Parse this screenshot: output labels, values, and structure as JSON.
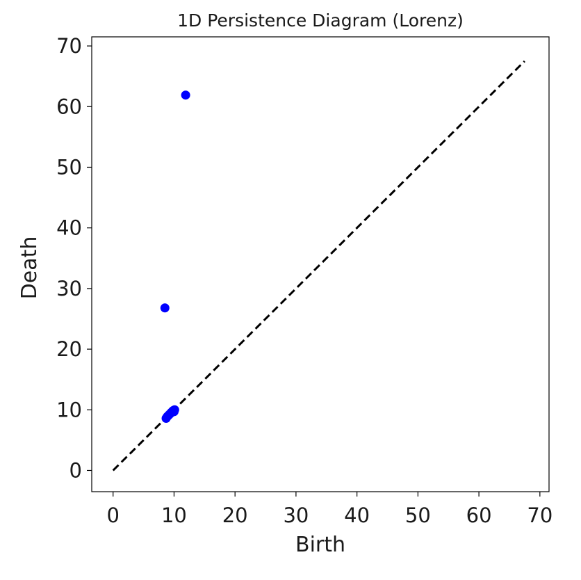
{
  "chart_data": {
    "type": "scatter",
    "title": "1D Persistence Diagram (Lorenz)",
    "xlabel": "Birth",
    "ylabel": "Death",
    "xlim": [
      -3.5,
      71.5
    ],
    "ylim": [
      -3.5,
      71.5
    ],
    "xticks": [
      0,
      10,
      20,
      30,
      40,
      50,
      60,
      70
    ],
    "yticks": [
      0,
      10,
      20,
      30,
      40,
      50,
      60,
      70
    ],
    "grid": false,
    "points_color": "#0000ff",
    "diagonal": {
      "style": "dashed",
      "color": "#000000",
      "from": [
        0,
        0
      ],
      "to": [
        67.5,
        67.5
      ]
    },
    "series": [
      {
        "x": [
          11.9,
          8.5,
          8.7,
          8.9,
          9.1,
          9.3,
          9.5,
          9.7,
          9.9,
          10.1,
          9.6,
          9.8,
          10.0
        ],
        "y": [
          61.9,
          26.8,
          8.6,
          8.9,
          9.1,
          9.3,
          9.5,
          9.7,
          9.9,
          10.0,
          9.6,
          9.8,
          9.7
        ]
      }
    ]
  }
}
